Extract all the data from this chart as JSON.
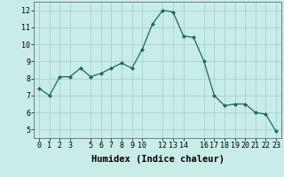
{
  "x": [
    0,
    1,
    2,
    3,
    4,
    5,
    6,
    7,
    8,
    9,
    10,
    11,
    12,
    13,
    14,
    15,
    16,
    17,
    18,
    19,
    20,
    21,
    22,
    23
  ],
  "y": [
    7.4,
    7.0,
    8.1,
    8.1,
    8.6,
    8.1,
    8.3,
    8.6,
    8.9,
    8.6,
    9.7,
    11.2,
    12.0,
    11.9,
    10.5,
    10.4,
    9.0,
    7.0,
    6.4,
    6.5,
    6.5,
    6.0,
    5.9,
    4.9
  ],
  "line_color": "#1a6b5a",
  "marker": "D",
  "marker_size": 2.0,
  "bg_color": "#c8ece8",
  "grid_color": "#a0cdc8",
  "xlabel": "Humidex (Indice chaleur)",
  "xlim": [
    -0.5,
    23.5
  ],
  "ylim": [
    4.5,
    12.5
  ],
  "xticks": [
    0,
    1,
    2,
    3,
    5,
    6,
    7,
    8,
    9,
    10,
    12,
    13,
    14,
    16,
    17,
    18,
    19,
    20,
    21,
    22,
    23
  ],
  "yticks": [
    5,
    6,
    7,
    8,
    9,
    10,
    11,
    12
  ],
  "tick_labelsize": 6.0,
  "xlabel_fontsize": 7.5
}
